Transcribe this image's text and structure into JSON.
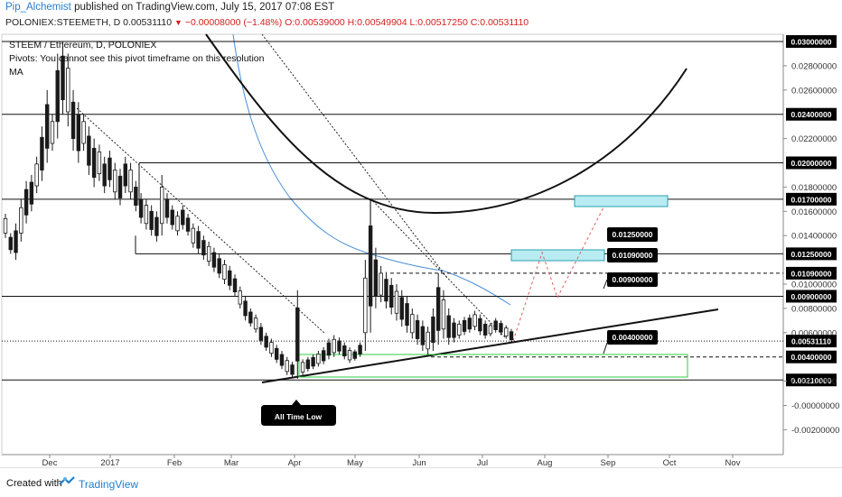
{
  "header": {
    "author": "Pip_Alchemist",
    "published_text": "published on TradingView.com, July 15, 2017 07:08 EST",
    "symbol": "POLONIEX:STEEMETH, D",
    "last": "0.00531110",
    "change": "−0.00008000 (−1.48%)",
    "open": "O:0.00539000",
    "high": "H:0.00549904",
    "low": "L:0.00517250",
    "close": "C:0.00531110"
  },
  "overlay": {
    "line1": "STEEM / Ethereum, D, POLONIEX",
    "line2": "Pivots: You cannot see this pivot timeframe on this resolution",
    "line3": "MA"
  },
  "footer": {
    "created": "Created with",
    "brand": "TradingView"
  },
  "colors": {
    "candle": "#1a1a1a",
    "ma": "#4a90d9",
    "target_zone_fill": "#b8ecf2",
    "target_zone_stroke": "#2a9fb0",
    "support_zone": "#2ecc40",
    "projection": "#e06060",
    "price_label": "#000000"
  },
  "chart_data": {
    "type": "candlestick",
    "pair": "STEEM / Ethereum",
    "x_ticks": [
      "Dec",
      "2017",
      "Feb",
      "Mar",
      "Apr",
      "May",
      "Jun",
      "Jul",
      "Aug",
      "Sep",
      "Oct",
      "Nov"
    ],
    "y_ticks": [
      "0.02800000",
      "0.02600000",
      "0.02200000",
      "0.01800000",
      "0.01600000",
      "0.01400000",
      "0.01000000",
      "0.00800000",
      "0.00600000",
      "0.00200000",
      "-0.00000000",
      "-0.00200000"
    ],
    "ylim": [
      -0.0028,
      0.0302
    ],
    "horizontal_levels": [
      {
        "value": 0.03,
        "label": "0.03000000"
      },
      {
        "value": 0.024,
        "label": "0.02400000"
      },
      {
        "value": 0.02,
        "label": "0.02000000"
      },
      {
        "value": 0.017,
        "label": "0.01700000"
      },
      {
        "value": 0.0125,
        "label": "0.01250000"
      },
      {
        "value": 0.0109,
        "label": "0.01090000",
        "dashed": true
      },
      {
        "value": 0.009,
        "label": "0.00900000"
      },
      {
        "value": 0.0053111,
        "label": "0.00531110",
        "dotted": true
      },
      {
        "value": 0.004,
        "label": "0.00400000",
        "dashed": true
      },
      {
        "value": 0.0021,
        "label": "0.00210000"
      }
    ],
    "callouts": [
      {
        "label": "0.01250000",
        "value": 0.0125
      },
      {
        "label": "0.01090000",
        "value": 0.0109
      },
      {
        "label": "0.00900000",
        "value": 0.009
      },
      {
        "label": "0.00400000",
        "value": 0.004
      }
    ],
    "annotations": [
      "All Time Low"
    ],
    "target_zones": [
      {
        "from": 0.0164,
        "to": 0.0173
      },
      {
        "from": 0.0118,
        "to": 0.0126
      }
    ],
    "support_zone": {
      "from": 0.0021,
      "to": 0.004
    },
    "candles_approx": [
      [
        0.0138,
        0.0158
      ],
      [
        0.0125,
        0.0142
      ],
      [
        0.012,
        0.015
      ],
      [
        0.0135,
        0.017
      ],
      [
        0.015,
        0.0185
      ],
      [
        0.016,
        0.019
      ],
      [
        0.0175,
        0.0205
      ],
      [
        0.0185,
        0.023
      ],
      [
        0.02,
        0.026
      ],
      [
        0.021,
        0.024
      ],
      [
        0.022,
        0.029
      ],
      [
        0.024,
        0.03
      ],
      [
        0.023,
        0.029
      ],
      [
        0.021,
        0.026
      ],
      [
        0.02,
        0.025
      ],
      [
        0.021,
        0.024
      ],
      [
        0.019,
        0.023
      ],
      [
        0.018,
        0.022
      ],
      [
        0.0185,
        0.0215
      ],
      [
        0.0175,
        0.0205
      ],
      [
        0.018,
        0.021
      ],
      [
        0.017,
        0.02
      ],
      [
        0.0165,
        0.0195
      ],
      [
        0.0175,
        0.0205
      ],
      [
        0.017,
        0.02
      ],
      [
        0.016,
        0.0185
      ],
      [
        0.015,
        0.0175
      ],
      [
        0.0145,
        0.017
      ],
      [
        0.014,
        0.0165
      ],
      [
        0.0135,
        0.016
      ],
      [
        0.014,
        0.019
      ],
      [
        0.015,
        0.0175
      ],
      [
        0.0145,
        0.0165
      ],
      [
        0.014,
        0.016
      ],
      [
        0.0145,
        0.0165
      ],
      [
        0.014,
        0.0158
      ],
      [
        0.013,
        0.015
      ],
      [
        0.0125,
        0.0148
      ],
      [
        0.012,
        0.014
      ],
      [
        0.0115,
        0.0135
      ],
      [
        0.011,
        0.013
      ],
      [
        0.0105,
        0.0125
      ],
      [
        0.01,
        0.012
      ],
      [
        0.0095,
        0.0115
      ],
      [
        0.009,
        0.0108
      ],
      [
        0.008,
        0.0098
      ],
      [
        0.007,
        0.009
      ],
      [
        0.0065,
        0.008
      ],
      [
        0.006,
        0.0075
      ],
      [
        0.005,
        0.0068
      ],
      [
        0.0045,
        0.006
      ],
      [
        0.004,
        0.0055
      ],
      [
        0.0035,
        0.005
      ],
      [
        0.003,
        0.0045
      ],
      [
        0.0025,
        0.004
      ],
      [
        0.0023,
        0.0036
      ],
      [
        0.0022,
        0.0095
      ],
      [
        0.0025,
        0.0038
      ],
      [
        0.0028,
        0.004
      ],
      [
        0.003,
        0.0042
      ],
      [
        0.0032,
        0.0045
      ],
      [
        0.0034,
        0.0048
      ],
      [
        0.0038,
        0.0055
      ],
      [
        0.004,
        0.0058
      ],
      [
        0.0042,
        0.0056
      ],
      [
        0.0038,
        0.0052
      ],
      [
        0.0035,
        0.0048
      ],
      [
        0.0037,
        0.0046
      ],
      [
        0.004,
        0.0052
      ],
      [
        0.0045,
        0.012
      ],
      [
        0.006,
        0.017
      ],
      [
        0.008,
        0.013
      ],
      [
        0.0085,
        0.0115
      ],
      [
        0.008,
        0.011
      ],
      [
        0.0075,
        0.0105
      ],
      [
        0.007,
        0.01
      ],
      [
        0.0065,
        0.0095
      ],
      [
        0.006,
        0.009
      ],
      [
        0.0055,
        0.008
      ],
      [
        0.005,
        0.0075
      ],
      [
        0.0045,
        0.007
      ],
      [
        0.0042,
        0.0065
      ],
      [
        0.0045,
        0.008
      ],
      [
        0.005,
        0.0109
      ],
      [
        0.0055,
        0.0095
      ],
      [
        0.005,
        0.008
      ],
      [
        0.0052,
        0.0072
      ],
      [
        0.0055,
        0.007
      ],
      [
        0.0058,
        0.0073
      ],
      [
        0.006,
        0.0075
      ],
      [
        0.0062,
        0.0078
      ],
      [
        0.0058,
        0.0075
      ],
      [
        0.0055,
        0.007
      ],
      [
        0.0057,
        0.0068
      ],
      [
        0.006,
        0.0072
      ],
      [
        0.0058,
        0.007
      ],
      [
        0.0055,
        0.0066
      ],
      [
        0.0052,
        0.0063
      ]
    ]
  }
}
